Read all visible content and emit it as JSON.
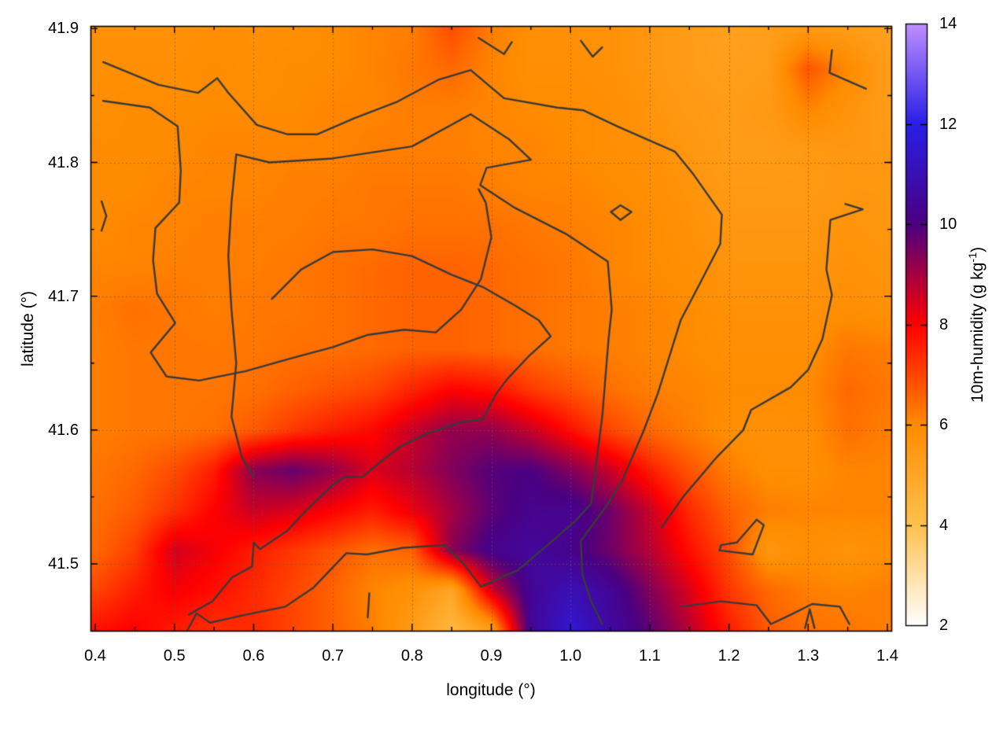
{
  "chart_data": {
    "type": "heatmap",
    "title": "",
    "xlabel": "longitude (°)",
    "ylabel": "latitude (°)",
    "axes": {
      "x": {
        "min": 0.394,
        "max": 1.405,
        "tick_values": [
          0.4,
          0.5,
          0.6,
          0.7,
          0.8,
          0.9,
          1.0,
          1.1,
          1.2,
          1.3,
          1.4
        ],
        "tick_labels": [
          "0.4",
          "0.5",
          "0.6",
          "0.7",
          "0.8",
          "0.9",
          "1.0",
          "1.1",
          "1.2",
          "1.3",
          "1.4"
        ],
        "minor_ticks": [
          0.45,
          0.55,
          0.65,
          0.75,
          0.85,
          0.95,
          1.05,
          1.15,
          1.25,
          1.35
        ]
      },
      "y": {
        "min": 41.45,
        "max": 41.902,
        "tick_values": [
          41.5,
          41.6,
          41.7,
          41.8,
          41.9
        ],
        "tick_labels": [
          "41.5",
          "41.6",
          "41.7",
          "41.8",
          "41.9"
        ],
        "minor_ticks": [
          41.55,
          41.65,
          41.75,
          41.85
        ]
      },
      "grid_x_lines": [
        0.5,
        0.6,
        0.7,
        0.8,
        0.9,
        1.0,
        1.1,
        1.2,
        1.3
      ],
      "grid_y_lines": [
        41.5,
        41.6,
        41.7,
        41.8
      ]
    },
    "colorbar": {
      "label_pre": "10m-humidity (g kg",
      "label_sup": "-1",
      "label_post": ")",
      "min": 2,
      "max": 14,
      "tick_values": [
        2,
        4,
        6,
        8,
        10,
        12,
        14
      ],
      "tick_labels": [
        "2",
        "4",
        "6",
        "8",
        "10",
        "12",
        "14"
      ],
      "palette_stops": [
        [
          2,
          [
            255,
            255,
            255
          ]
        ],
        [
          4,
          [
            255,
            193,
            77
          ]
        ],
        [
          6,
          [
            255,
            140,
            0
          ]
        ],
        [
          8,
          [
            255,
            0,
            0
          ]
        ],
        [
          10,
          [
            75,
            0,
            130
          ]
        ],
        [
          12,
          [
            42,
            31,
            232
          ]
        ],
        [
          14,
          [
            191,
            143,
            255
          ]
        ]
      ]
    },
    "heat": {
      "lon_values": [
        0.4,
        0.45,
        0.5,
        0.55,
        0.6,
        0.65,
        0.7,
        0.75,
        0.8,
        0.85,
        0.9,
        0.95,
        1.0,
        1.05,
        1.1,
        1.15,
        1.2,
        1.25,
        1.3,
        1.35,
        1.4
      ],
      "lat_values": [
        41.9,
        41.87,
        41.84,
        41.81,
        41.78,
        41.75,
        41.72,
        41.69,
        41.66,
        41.63,
        41.6,
        41.57,
        41.54,
        41.51,
        41.48,
        41.45
      ],
      "units": "g kg-1",
      "values": [
        [
          5.8,
          5.8,
          5.8,
          5.9,
          5.9,
          5.9,
          6.0,
          6.1,
          6.2,
          6.9,
          6.2,
          5.9,
          5.8,
          5.8,
          5.6,
          5.4,
          5.2,
          5.3,
          5.5,
          5.4,
          5.2
        ],
        [
          5.9,
          5.9,
          5.9,
          6.0,
          5.9,
          6.0,
          6.0,
          6.1,
          6.3,
          6.5,
          6.1,
          5.9,
          5.9,
          5.8,
          5.6,
          5.4,
          5.3,
          5.4,
          6.8,
          6.0,
          5.4
        ],
        [
          5.9,
          6.0,
          6.0,
          6.0,
          6.0,
          6.0,
          6.1,
          6.1,
          6.2,
          6.2,
          6.1,
          6.0,
          6.0,
          5.9,
          5.7,
          5.5,
          5.4,
          5.5,
          6.1,
          5.7,
          5.4
        ],
        [
          6.0,
          6.0,
          6.0,
          6.1,
          6.1,
          6.1,
          6.1,
          6.2,
          6.2,
          6.2,
          6.1,
          6.1,
          6.0,
          5.9,
          5.8,
          5.6,
          5.4,
          5.4,
          5.5,
          5.6,
          5.5
        ],
        [
          6.0,
          6.0,
          6.1,
          6.1,
          6.1,
          6.2,
          6.2,
          6.3,
          6.3,
          6.3,
          6.2,
          6.1,
          6.1,
          6.0,
          5.9,
          5.7,
          5.5,
          5.5,
          5.5,
          5.6,
          5.6
        ],
        [
          6.0,
          6.1,
          6.1,
          6.2,
          6.2,
          6.2,
          6.3,
          6.3,
          6.4,
          6.4,
          6.4,
          6.3,
          6.2,
          6.1,
          6.0,
          5.8,
          5.6,
          5.6,
          5.6,
          5.7,
          5.6
        ],
        [
          6.1,
          6.1,
          6.2,
          6.2,
          6.2,
          6.3,
          6.4,
          6.5,
          6.6,
          6.6,
          6.5,
          6.4,
          6.3,
          6.1,
          6.0,
          5.9,
          5.7,
          5.7,
          5.7,
          5.8,
          5.7
        ],
        [
          6.2,
          6.4,
          6.3,
          6.2,
          6.3,
          6.3,
          6.4,
          6.5,
          6.6,
          6.6,
          6.5,
          6.4,
          6.3,
          6.2,
          6.1,
          6.0,
          5.8,
          5.8,
          5.8,
          5.9,
          5.8
        ],
        [
          6.2,
          6.3,
          6.3,
          6.3,
          6.3,
          6.4,
          6.4,
          6.5,
          6.6,
          6.6,
          6.5,
          6.4,
          6.3,
          6.2,
          6.1,
          6.0,
          5.9,
          5.9,
          5.9,
          6.3,
          6.2
        ],
        [
          6.2,
          6.3,
          6.3,
          6.3,
          6.4,
          6.6,
          6.8,
          7.0,
          7.5,
          8.0,
          7.8,
          7.2,
          6.8,
          6.4,
          6.2,
          6.1,
          6.0,
          6.0,
          6.0,
          6.5,
          6.3
        ],
        [
          6.2,
          6.3,
          6.3,
          6.4,
          6.7,
          7.2,
          7.6,
          7.9,
          8.6,
          9.2,
          9.2,
          8.6,
          7.8,
          7.0,
          6.5,
          6.2,
          5.9,
          5.8,
          5.9,
          6.4,
          6.2
        ],
        [
          6.3,
          6.5,
          6.9,
          7.6,
          9.3,
          9.7,
          9.2,
          8.4,
          8.8,
          9.4,
          9.9,
          10.0,
          9.4,
          8.6,
          7.6,
          6.8,
          6.2,
          5.9,
          5.9,
          6.1,
          6.1
        ],
        [
          6.4,
          6.7,
          7.3,
          8.0,
          8.6,
          8.4,
          8.0,
          7.6,
          8.2,
          9.0,
          9.8,
          10.2,
          10.3,
          9.6,
          8.6,
          7.4,
          6.6,
          6.2,
          6.1,
          6.1,
          6.1
        ],
        [
          6.5,
          7.1,
          8.5,
          8.1,
          7.6,
          7.2,
          6.8,
          6.4,
          6.6,
          9.3,
          10.2,
          10.5,
          10.2,
          9.6,
          8.8,
          7.8,
          6.9,
          5.6,
          5.9,
          5.7,
          5.9
        ],
        [
          7.0,
          7.6,
          8.1,
          7.8,
          7.4,
          7.0,
          6.6,
          6.1,
          5.8,
          5.0,
          8.5,
          10.4,
          11.0,
          10.4,
          9.4,
          8.4,
          7.2,
          6.5,
          6.2,
          6.1,
          6.2
        ],
        [
          7.8,
          8.0,
          7.6,
          7.3,
          7.4,
          7.0,
          6.6,
          6.2,
          5.4,
          4.3,
          5.2,
          10.4,
          11.6,
          10.6,
          9.8,
          8.8,
          7.6,
          6.7,
          6.4,
          6.3,
          6.2
        ]
      ]
    },
    "contours": {
      "color": "#3a3a3a",
      "width": 2.4,
      "paths": [
        [
          [
            0.41,
            41.875
          ],
          [
            0.48,
            41.858
          ],
          [
            0.53,
            41.852
          ],
          [
            0.554,
            41.863
          ],
          [
            0.568,
            41.852
          ],
          [
            0.604,
            41.828
          ],
          [
            0.643,
            41.821
          ],
          [
            0.68,
            41.821
          ],
          [
            0.727,
            41.833
          ],
          [
            0.78,
            41.845
          ],
          [
            0.834,
            41.862
          ],
          [
            0.874,
            41.869
          ],
          [
            0.916,
            41.848
          ],
          [
            0.983,
            41.841
          ],
          [
            1.016,
            41.839
          ],
          [
            1.059,
            41.827
          ],
          [
            1.132,
            41.808
          ],
          [
            1.154,
            41.792
          ],
          [
            1.191,
            41.761
          ],
          [
            1.189,
            41.739
          ],
          [
            1.162,
            41.708
          ],
          [
            1.139,
            41.682
          ],
          [
            1.11,
            41.627
          ],
          [
            1.092,
            41.599
          ],
          [
            1.065,
            41.562
          ],
          [
            1.045,
            41.543
          ],
          [
            1.013,
            41.517
          ],
          [
            1.015,
            41.492
          ],
          [
            1.026,
            41.472
          ],
          [
            1.04,
            41.455
          ]
        ],
        [
          [
            0.41,
            41.846
          ],
          [
            0.469,
            41.841
          ],
          [
            0.504,
            41.827
          ],
          [
            0.508,
            41.794
          ],
          [
            0.506,
            41.77
          ],
          [
            0.476,
            41.751
          ],
          [
            0.473,
            41.727
          ],
          [
            0.478,
            41.702
          ],
          [
            0.501,
            41.68
          ],
          [
            0.47,
            41.658
          ],
          [
            0.49,
            41.64
          ],
          [
            0.531,
            41.637
          ],
          [
            0.59,
            41.644
          ],
          [
            0.65,
            41.654
          ],
          [
            0.7,
            41.662
          ],
          [
            0.743,
            41.671
          ],
          [
            0.79,
            41.675
          ],
          [
            0.83,
            41.673
          ],
          [
            0.862,
            41.69
          ],
          [
            0.887,
            41.713
          ],
          [
            0.9,
            41.744
          ],
          [
            0.893,
            41.77
          ],
          [
            0.884,
            41.78
          ]
        ],
        [
          [
            0.6,
            41.565
          ],
          [
            0.585,
            41.58
          ],
          [
            0.572,
            41.61
          ],
          [
            0.578,
            41.65
          ],
          [
            0.572,
            41.69
          ],
          [
            0.568,
            41.73
          ],
          [
            0.572,
            41.77
          ],
          [
            0.578,
            41.806
          ],
          [
            0.62,
            41.8
          ],
          [
            0.7,
            41.803
          ],
          [
            0.8,
            41.812
          ],
          [
            0.874,
            41.836
          ],
          [
            0.923,
            41.817
          ],
          [
            0.95,
            41.802
          ],
          [
            0.894,
            41.796
          ],
          [
            0.886,
            41.783
          ],
          [
            0.93,
            41.766
          ],
          [
            0.996,
            41.746
          ],
          [
            1.047,
            41.726
          ],
          [
            1.052,
            41.69
          ],
          [
            1.048,
            41.668
          ],
          [
            1.04,
            41.61
          ],
          [
            1.026,
            41.545
          ],
          [
            1.006,
            41.532
          ],
          [
            0.973,
            41.515
          ],
          [
            0.933,
            41.495
          ],
          [
            0.887,
            41.483
          ],
          [
            0.865,
            41.5
          ],
          [
            0.841,
            41.514
          ],
          [
            0.789,
            41.512
          ],
          [
            0.743,
            41.507
          ],
          [
            0.717,
            41.508
          ],
          [
            0.675,
            41.482
          ],
          [
            0.64,
            41.468
          ],
          [
            0.59,
            41.462
          ],
          [
            0.545,
            41.456
          ],
          [
            0.528,
            41.463
          ],
          [
            0.516,
            41.45
          ]
        ],
        [
          [
            0.623,
            41.698
          ],
          [
            0.66,
            41.72
          ],
          [
            0.7,
            41.733
          ],
          [
            0.75,
            41.735
          ],
          [
            0.8,
            41.73
          ],
          [
            0.85,
            41.716
          ],
          [
            0.889,
            41.707
          ],
          [
            0.93,
            41.693
          ],
          [
            0.96,
            41.682
          ],
          [
            0.975,
            41.67
          ],
          [
            0.947,
            41.655
          ],
          [
            0.92,
            41.638
          ],
          [
            0.906,
            41.627
          ],
          [
            0.889,
            41.608
          ],
          [
            0.862,
            41.606
          ],
          [
            0.822,
            41.598
          ],
          [
            0.786,
            41.588
          ],
          [
            0.764,
            41.578
          ],
          [
            0.737,
            41.565
          ],
          [
            0.715,
            41.565
          ],
          [
            0.7,
            41.559
          ],
          [
            0.668,
            41.541
          ],
          [
            0.643,
            41.525
          ],
          [
            0.608,
            41.511
          ],
          [
            0.6,
            41.516
          ],
          [
            0.598,
            41.498
          ],
          [
            0.573,
            41.49
          ],
          [
            0.548,
            41.472
          ],
          [
            0.518,
            41.462
          ]
        ],
        [
          [
            1.051,
            41.763
          ],
          [
            1.063,
            41.757
          ],
          [
            1.077,
            41.763
          ],
          [
            1.063,
            41.768
          ],
          [
            1.051,
            41.763
          ]
        ],
        [
          [
            1.188,
            41.51
          ],
          [
            1.23,
            41.507
          ],
          [
            1.244,
            41.529
          ],
          [
            1.235,
            41.533
          ],
          [
            1.21,
            41.516
          ],
          [
            1.19,
            41.514
          ],
          [
            1.188,
            41.51
          ]
        ],
        [
          [
            0.884,
            41.893
          ],
          [
            0.916,
            41.881
          ],
          [
            0.926,
            41.89
          ]
        ],
        [
          [
            1.013,
            41.891
          ],
          [
            1.028,
            41.879
          ],
          [
            1.04,
            41.886
          ]
        ],
        [
          [
            1.33,
            41.884
          ],
          [
            1.327,
            41.867
          ],
          [
            1.373,
            41.855
          ]
        ],
        [
          [
            1.347,
            41.769
          ],
          [
            1.369,
            41.765
          ],
          [
            1.328,
            41.757
          ],
          [
            1.323,
            41.72
          ],
          [
            1.33,
            41.701
          ],
          [
            1.318,
            41.668
          ],
          [
            1.3,
            41.645
          ],
          [
            1.278,
            41.632
          ],
          [
            1.228,
            41.615
          ],
          [
            1.218,
            41.6
          ],
          [
            1.185,
            41.58
          ],
          [
            1.142,
            41.55
          ],
          [
            1.115,
            41.527
          ]
        ],
        [
          [
            1.14,
            41.468
          ],
          [
            1.19,
            41.472
          ],
          [
            1.235,
            41.469
          ],
          [
            1.253,
            41.455
          ],
          [
            1.278,
            41.462
          ],
          [
            1.305,
            41.47
          ],
          [
            1.34,
            41.468
          ],
          [
            1.352,
            41.455
          ]
        ],
        [
          [
            0.408,
            41.771
          ],
          [
            0.414,
            41.76
          ],
          [
            0.408,
            41.749
          ]
        ],
        [
          [
            0.746,
            41.478
          ],
          [
            0.744,
            41.46
          ]
        ],
        [
          [
            1.296,
            41.452
          ],
          [
            1.302,
            41.466
          ],
          [
            1.308,
            41.452
          ]
        ]
      ]
    },
    "style": {
      "background": "#ffffff",
      "border_color": "#000000",
      "grid_color": "rgba(120,85,45,0.8)",
      "tick_color": "#000000"
    },
    "legend_position": "right-colorbar",
    "grid": "dotted"
  }
}
